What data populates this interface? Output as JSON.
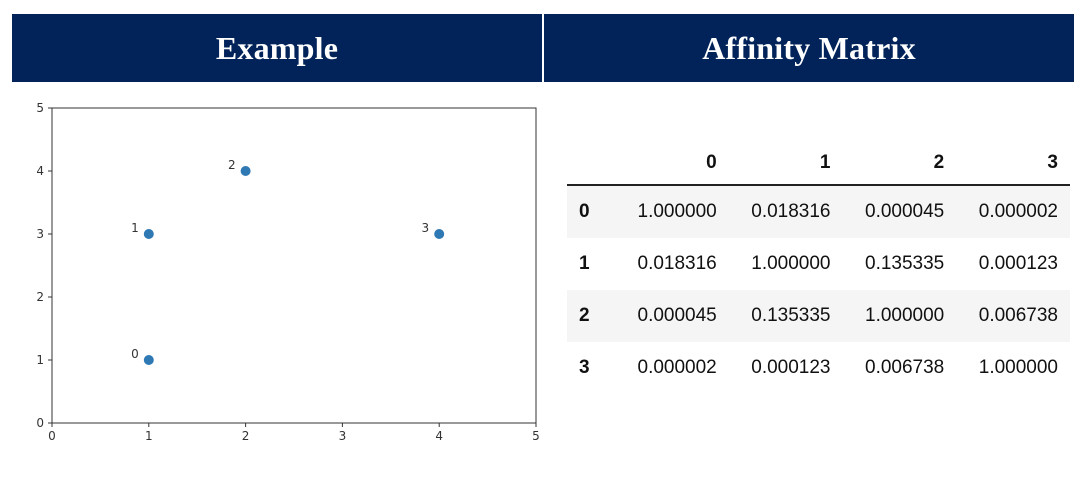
{
  "headers": {
    "left": "Example",
    "right": "Affinity Matrix"
  },
  "chart_data": {
    "type": "scatter",
    "title": "",
    "xlabel": "",
    "ylabel": "",
    "xlim": [
      0,
      5
    ],
    "ylim": [
      0,
      5
    ],
    "xticks": [
      "0",
      "1",
      "2",
      "3",
      "4",
      "5"
    ],
    "yticks": [
      "0",
      "1",
      "2",
      "3",
      "4",
      "5"
    ],
    "grid": false,
    "marker_color": "#2e78b4",
    "points": [
      {
        "label": "0",
        "x": 1,
        "y": 1
      },
      {
        "label": "1",
        "x": 1,
        "y": 3
      },
      {
        "label": "2",
        "x": 2,
        "y": 4
      },
      {
        "label": "3",
        "x": 4,
        "y": 3
      }
    ]
  },
  "matrix": {
    "columns": [
      "0",
      "1",
      "2",
      "3"
    ],
    "rows": [
      {
        "label": "0",
        "values": [
          "1.000000",
          "0.018316",
          "0.000045",
          "0.000002"
        ]
      },
      {
        "label": "1",
        "values": [
          "0.018316",
          "1.000000",
          "0.135335",
          "0.000123"
        ]
      },
      {
        "label": "2",
        "values": [
          "0.000045",
          "0.135335",
          "1.000000",
          "0.006738"
        ]
      },
      {
        "label": "3",
        "values": [
          "0.000002",
          "0.000123",
          "0.006738",
          "1.000000"
        ]
      }
    ]
  }
}
